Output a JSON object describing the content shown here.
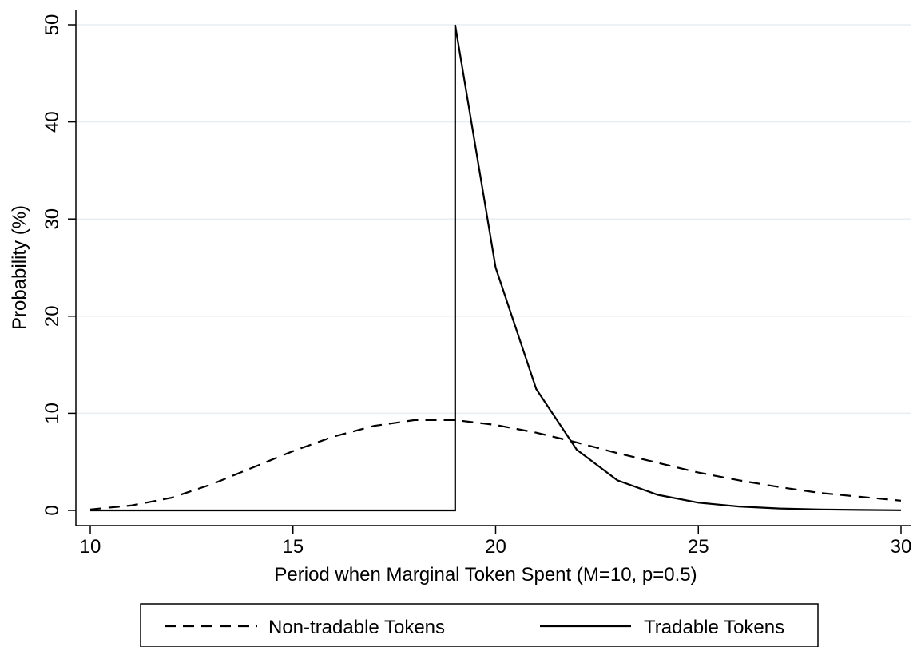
{
  "chart_data": {
    "type": "line",
    "title": "",
    "xlabel": "Period when Marginal Token Spent (M=10, p=0.5)",
    "ylabel": "Probability (%)",
    "xlim": [
      10,
      30
    ],
    "ylim": [
      0,
      50
    ],
    "x_ticks": [
      10,
      15,
      20,
      25,
      30
    ],
    "y_ticks": [
      0,
      10,
      20,
      30,
      40,
      50
    ],
    "grid": "horizontal",
    "legend_position": "bottom",
    "series": [
      {
        "name": "Non-tradable Tokens",
        "style": "dashed",
        "color": "#000000",
        "points": [
          [
            10,
            0.1
          ],
          [
            11,
            0.5
          ],
          [
            12,
            1.3
          ],
          [
            13,
            2.7
          ],
          [
            14,
            4.4
          ],
          [
            15,
            6.1
          ],
          [
            16,
            7.6
          ],
          [
            17,
            8.7
          ],
          [
            18,
            9.3
          ],
          [
            19,
            9.3
          ],
          [
            20,
            8.8
          ],
          [
            21,
            8.0
          ],
          [
            22,
            7.0
          ],
          [
            23,
            5.9
          ],
          [
            24,
            4.9
          ],
          [
            25,
            3.9
          ],
          [
            26,
            3.1
          ],
          [
            27,
            2.4
          ],
          [
            28,
            1.8
          ],
          [
            29,
            1.4
          ],
          [
            30,
            1.0
          ]
        ]
      },
      {
        "name": "Tradable Tokens",
        "style": "solid",
        "color": "#000000",
        "points": [
          [
            10,
            0
          ],
          [
            11,
            0
          ],
          [
            12,
            0
          ],
          [
            13,
            0
          ],
          [
            14,
            0
          ],
          [
            15,
            0
          ],
          [
            16,
            0
          ],
          [
            17,
            0
          ],
          [
            18,
            0
          ],
          [
            19,
            0
          ],
          [
            19,
            50
          ],
          [
            20,
            25
          ],
          [
            21,
            12.5
          ],
          [
            22,
            6.25
          ],
          [
            23,
            3.1
          ],
          [
            24,
            1.6
          ],
          [
            25,
            0.8
          ],
          [
            26,
            0.4
          ],
          [
            27,
            0.2
          ],
          [
            28,
            0.1
          ],
          [
            29,
            0.05
          ],
          [
            30,
            0.02
          ]
        ]
      }
    ]
  },
  "colors": {
    "grid": "#e6eef2",
    "axis": "#000000",
    "background": "#ffffff"
  }
}
